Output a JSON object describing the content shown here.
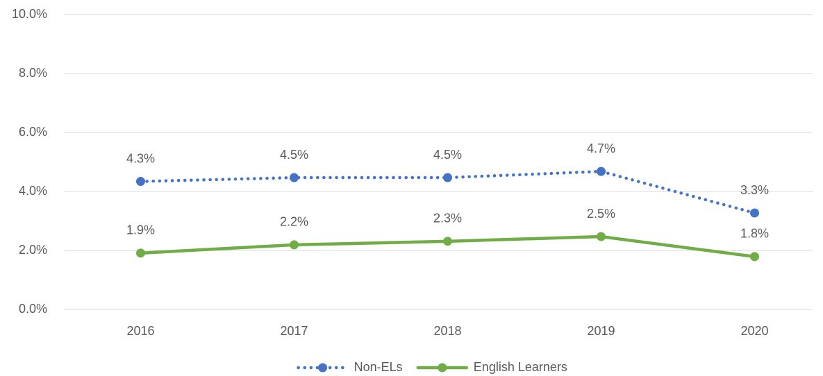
{
  "chart_data": {
    "type": "line",
    "categories": [
      "2016",
      "2017",
      "2018",
      "2019",
      "2020"
    ],
    "series": [
      {
        "name": "Non-ELs",
        "color": "#4472c4",
        "dash": "dotted",
        "values": [
          4.34,
          4.47,
          4.47,
          4.68,
          3.27
        ],
        "value_labels": [
          "4.3%",
          "4.5%",
          "4.5%",
          "4.7%",
          "3.3%"
        ]
      },
      {
        "name": "English Learners",
        "color": "#70ad47",
        "dash": "solid",
        "values": [
          1.91,
          2.19,
          2.31,
          2.47,
          1.79
        ],
        "value_labels": [
          "1.9%",
          "2.2%",
          "2.3%",
          "2.5%",
          "1.8%"
        ]
      }
    ],
    "ylim": [
      0,
      10
    ],
    "yticks": [
      {
        "value": 0,
        "label": "0.0%"
      },
      {
        "value": 2,
        "label": "2.0%"
      },
      {
        "value": 4,
        "label": "4.0%"
      },
      {
        "value": 6,
        "label": "6.0%"
      },
      {
        "value": 8,
        "label": "8.0%"
      },
      {
        "value": 10,
        "label": "10.0%"
      }
    ],
    "grid": true,
    "legend": "bottom"
  }
}
